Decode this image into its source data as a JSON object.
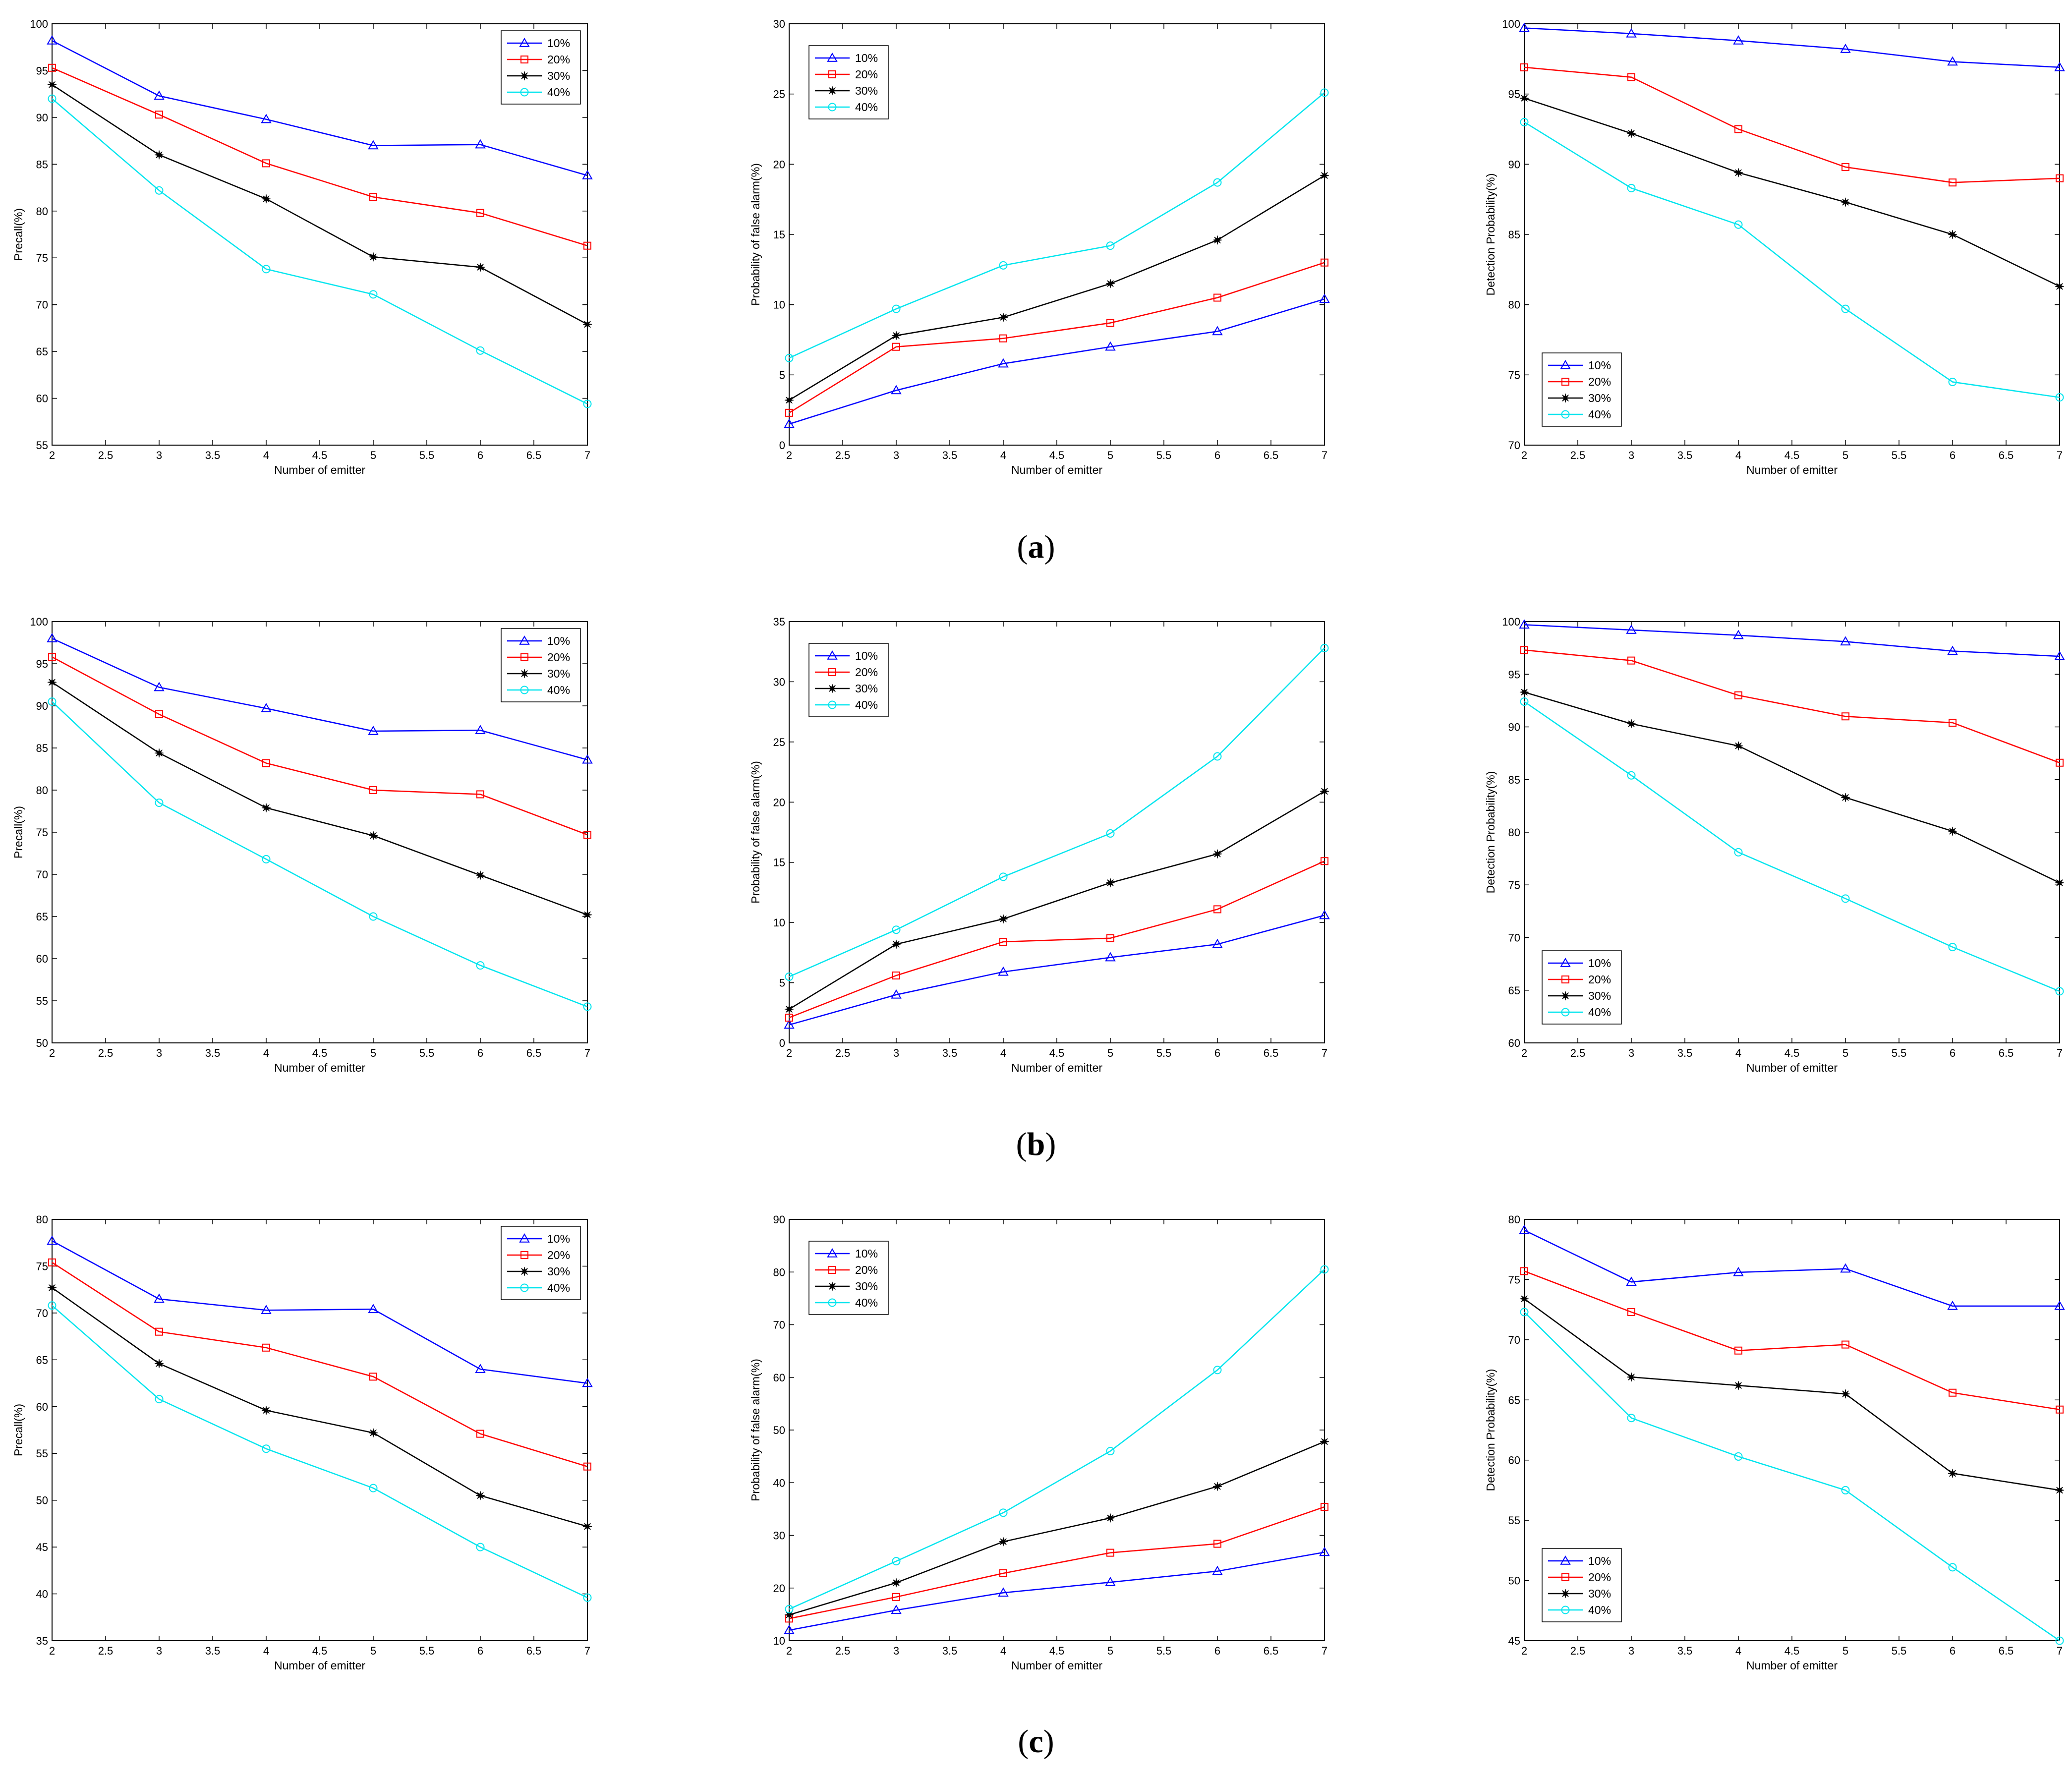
{
  "chart_data": [
    {
      "id": "a-precall",
      "row": "a",
      "type": "line",
      "xlabel": "Number of emitter",
      "ylabel": "Precall(%)",
      "xlim": [
        2,
        7
      ],
      "ylim": [
        55,
        100
      ],
      "xticks": [
        "2",
        "2.5",
        "3",
        "3.5",
        "4",
        "4.5",
        "5",
        "5.5",
        "6",
        "6.5",
        "7"
      ],
      "yticks": [
        "55",
        "60",
        "65",
        "70",
        "75",
        "80",
        "85",
        "90",
        "95",
        "100"
      ],
      "legend_position": "top-right",
      "x": [
        2,
        3,
        4,
        5,
        6,
        7
      ],
      "series": [
        {
          "name": "10%",
          "values": [
            98.2,
            92.3,
            89.8,
            87.0,
            87.1,
            83.8
          ]
        },
        {
          "name": "20%",
          "values": [
            95.3,
            90.3,
            85.1,
            81.5,
            79.8,
            76.3
          ]
        },
        {
          "name": "30%",
          "values": [
            93.5,
            86.0,
            81.3,
            75.1,
            74.0,
            67.9
          ]
        },
        {
          "name": "40%",
          "values": [
            92.0,
            82.2,
            73.8,
            71.1,
            65.1,
            59.4
          ]
        }
      ]
    },
    {
      "id": "a-false",
      "row": "a",
      "type": "line",
      "xlabel": "Number of emitter",
      "ylabel": "Probability of false alarm(%)",
      "xlim": [
        2,
        7
      ],
      "ylim": [
        0,
        30
      ],
      "xticks": [
        "2",
        "2.5",
        "3",
        "3.5",
        "4",
        "4.5",
        "5",
        "5.5",
        "6",
        "6.5",
        "7"
      ],
      "yticks": [
        "0",
        "5",
        "10",
        "15",
        "20",
        "25",
        "30"
      ],
      "legend_position": "top-left",
      "x": [
        2,
        3,
        4,
        5,
        6,
        7
      ],
      "series": [
        {
          "name": "10%",
          "values": [
            1.5,
            3.9,
            5.8,
            7.0,
            8.1,
            10.4
          ]
        },
        {
          "name": "20%",
          "values": [
            2.3,
            7.0,
            7.6,
            8.7,
            10.5,
            13.0
          ]
        },
        {
          "name": "30%",
          "values": [
            3.2,
            7.8,
            9.1,
            11.5,
            14.6,
            19.2
          ]
        },
        {
          "name": "40%",
          "values": [
            6.2,
            9.7,
            12.8,
            14.2,
            18.7,
            25.1
          ]
        }
      ]
    },
    {
      "id": "a-detect",
      "row": "a",
      "type": "line",
      "xlabel": "Number of emitter",
      "ylabel": "Detection Probability(%)",
      "xlim": [
        2,
        7
      ],
      "ylim": [
        70,
        100
      ],
      "xticks": [
        "2",
        "2.5",
        "3",
        "3.5",
        "4",
        "4.5",
        "5",
        "5.5",
        "6",
        "6.5",
        "7"
      ],
      "yticks": [
        "70",
        "75",
        "80",
        "85",
        "90",
        "95",
        "100"
      ],
      "legend_position": "bottom-left",
      "x": [
        2,
        3,
        4,
        5,
        6,
        7
      ],
      "series": [
        {
          "name": "10%",
          "values": [
            99.7,
            99.3,
            98.8,
            98.2,
            97.3,
            96.9
          ]
        },
        {
          "name": "20%",
          "values": [
            96.9,
            96.2,
            92.5,
            89.8,
            88.7,
            89.0
          ]
        },
        {
          "name": "30%",
          "values": [
            94.7,
            92.2,
            89.4,
            87.3,
            85.0,
            81.3
          ]
        },
        {
          "name": "40%",
          "values": [
            93.0,
            88.3,
            85.7,
            79.7,
            74.5,
            73.4
          ]
        }
      ]
    },
    {
      "id": "b-precall",
      "row": "b",
      "type": "line",
      "xlabel": "Number of emitter",
      "ylabel": "Precall(%)",
      "xlim": [
        2,
        7
      ],
      "ylim": [
        50,
        100
      ],
      "xticks": [
        "2",
        "2.5",
        "3",
        "3.5",
        "4",
        "4.5",
        "5",
        "5.5",
        "6",
        "6.5",
        "7"
      ],
      "yticks": [
        "50",
        "55",
        "60",
        "65",
        "70",
        "75",
        "80",
        "85",
        "90",
        "95",
        "100"
      ],
      "legend_position": "top-right",
      "x": [
        2,
        3,
        4,
        5,
        6,
        7
      ],
      "series": [
        {
          "name": "10%",
          "values": [
            98.0,
            92.2,
            89.7,
            87.0,
            87.1,
            83.6
          ]
        },
        {
          "name": "20%",
          "values": [
            95.8,
            89.0,
            83.2,
            80.0,
            79.5,
            74.7
          ]
        },
        {
          "name": "30%",
          "values": [
            92.8,
            84.4,
            77.9,
            74.6,
            69.9,
            65.2
          ]
        },
        {
          "name": "40%",
          "values": [
            90.5,
            78.5,
            71.8,
            65.0,
            59.2,
            54.3
          ]
        }
      ]
    },
    {
      "id": "b-false",
      "row": "b",
      "type": "line",
      "xlabel": "Number of emitter",
      "ylabel": "Probability of false alarm(%)",
      "xlim": [
        2,
        7
      ],
      "ylim": [
        0,
        35
      ],
      "xticks": [
        "2",
        "2.5",
        "3",
        "3.5",
        "4",
        "4.5",
        "5",
        "5.5",
        "6",
        "6.5",
        "7"
      ],
      "yticks": [
        "0",
        "5",
        "10",
        "15",
        "20",
        "25",
        "30",
        "35"
      ],
      "legend_position": "top-left",
      "x": [
        2,
        3,
        4,
        5,
        6,
        7
      ],
      "series": [
        {
          "name": "10%",
          "values": [
            1.5,
            4.0,
            5.9,
            7.1,
            8.2,
            10.6
          ]
        },
        {
          "name": "20%",
          "values": [
            2.1,
            5.6,
            8.4,
            8.7,
            11.1,
            15.1
          ]
        },
        {
          "name": "30%",
          "values": [
            2.8,
            8.2,
            10.3,
            13.3,
            15.7,
            20.9
          ]
        },
        {
          "name": "40%",
          "values": [
            5.5,
            9.4,
            13.8,
            17.4,
            23.8,
            32.8
          ]
        }
      ]
    },
    {
      "id": "b-detect",
      "row": "b",
      "type": "line",
      "xlabel": "Number of emitter",
      "ylabel": "Detection Probability(%)",
      "xlim": [
        2,
        7
      ],
      "ylim": [
        60,
        100
      ],
      "xticks": [
        "2",
        "2.5",
        "3",
        "3.5",
        "4",
        "4.5",
        "5",
        "5.5",
        "6",
        "6.5",
        "7"
      ],
      "yticks": [
        "60",
        "65",
        "70",
        "75",
        "80",
        "85",
        "90",
        "95",
        "100"
      ],
      "legend_position": "bottom-left",
      "x": [
        2,
        3,
        4,
        5,
        6,
        7
      ],
      "series": [
        {
          "name": "10%",
          "values": [
            99.7,
            99.2,
            98.7,
            98.1,
            97.2,
            96.7
          ]
        },
        {
          "name": "20%",
          "values": [
            97.3,
            96.3,
            93.0,
            91.0,
            90.4,
            86.6
          ]
        },
        {
          "name": "30%",
          "values": [
            93.3,
            90.3,
            88.2,
            83.3,
            80.1,
            75.2
          ]
        },
        {
          "name": "40%",
          "values": [
            92.4,
            85.4,
            78.1,
            73.7,
            69.1,
            64.9
          ]
        }
      ]
    },
    {
      "id": "c-precall",
      "row": "c",
      "type": "line",
      "xlabel": "Number of emitter",
      "ylabel": "Precall(%)",
      "xlim": [
        2,
        7
      ],
      "ylim": [
        35,
        80
      ],
      "xticks": [
        "2",
        "2.5",
        "3",
        "3.5",
        "4",
        "4.5",
        "5",
        "5.5",
        "6",
        "6.5",
        "7"
      ],
      "yticks": [
        "35",
        "40",
        "45",
        "50",
        "55",
        "60",
        "65",
        "70",
        "75",
        "80"
      ],
      "legend_position": "top-right",
      "x": [
        2,
        3,
        4,
        5,
        6,
        7
      ],
      "series": [
        {
          "name": "10%",
          "values": [
            77.7,
            71.5,
            70.3,
            70.4,
            64.0,
            62.5
          ]
        },
        {
          "name": "20%",
          "values": [
            75.4,
            68.0,
            66.3,
            63.2,
            57.1,
            53.6
          ]
        },
        {
          "name": "30%",
          "values": [
            72.7,
            64.6,
            59.6,
            57.2,
            50.5,
            47.2
          ]
        },
        {
          "name": "40%",
          "values": [
            70.8,
            60.8,
            55.5,
            51.3,
            45.0,
            39.6
          ]
        }
      ]
    },
    {
      "id": "c-false",
      "row": "c",
      "type": "line",
      "xlabel": "Number of emitter",
      "ylabel": "Probability of false alarm(%)",
      "xlim": [
        2,
        7
      ],
      "ylim": [
        10,
        90
      ],
      "xticks": [
        "2",
        "2.5",
        "3",
        "3.5",
        "4",
        "4.5",
        "5",
        "5.5",
        "6",
        "6.5",
        "7"
      ],
      "yticks": [
        "10",
        "20",
        "30",
        "40",
        "50",
        "60",
        "70",
        "80",
        "90"
      ],
      "legend_position": "top-left",
      "x": [
        2,
        3,
        4,
        5,
        6,
        7
      ],
      "series": [
        {
          "name": "10%",
          "values": [
            12.0,
            15.8,
            19.1,
            21.1,
            23.2,
            26.8
          ]
        },
        {
          "name": "20%",
          "values": [
            14.2,
            18.3,
            22.8,
            26.7,
            28.4,
            35.4
          ]
        },
        {
          "name": "30%",
          "values": [
            14.9,
            21.0,
            28.8,
            33.3,
            39.3,
            47.8
          ]
        },
        {
          "name": "40%",
          "values": [
            16.0,
            25.1,
            34.3,
            46.0,
            61.4,
            80.5
          ]
        }
      ]
    },
    {
      "id": "c-detect",
      "row": "c",
      "type": "line",
      "xlabel": "Number of emitter",
      "ylabel": "Detection Probability(%)",
      "xlim": [
        2,
        7
      ],
      "ylim": [
        45,
        80
      ],
      "xticks": [
        "2",
        "2.5",
        "3",
        "3.5",
        "4",
        "4.5",
        "5",
        "5.5",
        "6",
        "6.5",
        "7"
      ],
      "yticks": [
        "45",
        "50",
        "55",
        "60",
        "65",
        "70",
        "75",
        "80"
      ],
      "legend_position": "bottom-left",
      "x": [
        2,
        3,
        4,
        5,
        6,
        7
      ],
      "series": [
        {
          "name": "10%",
          "values": [
            79.1,
            74.8,
            75.6,
            75.9,
            72.8,
            72.8
          ]
        },
        {
          "name": "20%",
          "values": [
            75.7,
            72.3,
            69.1,
            69.6,
            65.6,
            64.2
          ]
        },
        {
          "name": "30%",
          "values": [
            73.4,
            66.9,
            66.2,
            65.5,
            58.9,
            57.5
          ]
        },
        {
          "name": "40%",
          "values": [
            72.3,
            63.5,
            60.3,
            57.5,
            51.1,
            45.0
          ]
        }
      ]
    }
  ],
  "series_colors": [
    "#0000ff",
    "#ff0000",
    "#000000",
    "#00e5ee"
  ],
  "series_markers": [
    "triangle",
    "square",
    "star",
    "circle"
  ],
  "captions": [
    {
      "row": "a",
      "open": "(",
      "letter": "a",
      "close": ")"
    },
    {
      "row": "b",
      "open": "(",
      "letter": "b",
      "close": ")"
    },
    {
      "row": "c",
      "open": "(",
      "letter": "c",
      "close": ")"
    }
  ]
}
